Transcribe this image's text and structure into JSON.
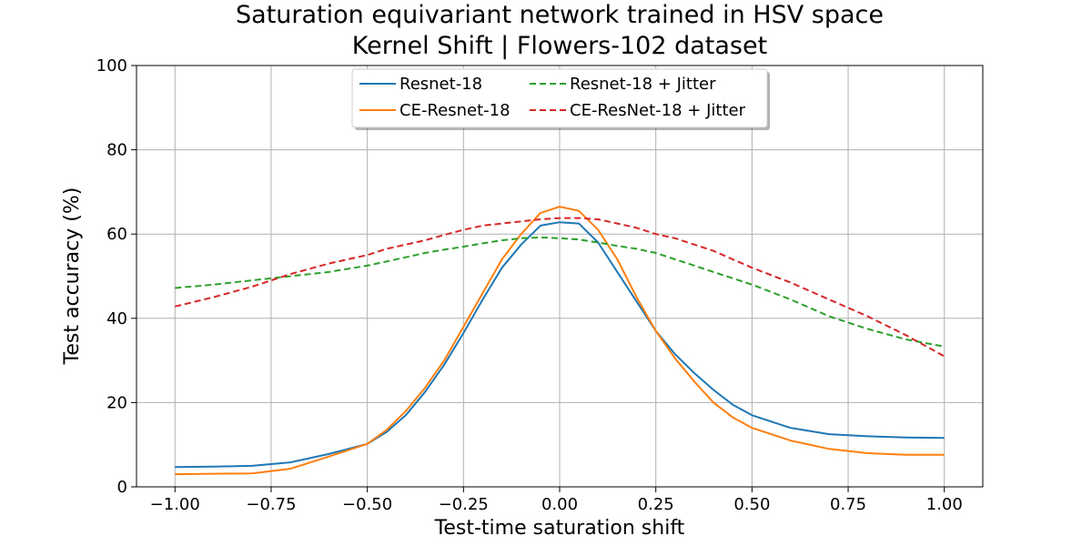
{
  "chart_data": {
    "type": "line",
    "title": "Saturation equivariant network trained in HSV space",
    "subtitle": "Kernel Shift | Flowers-102 dataset",
    "xlabel": "Test-time saturation shift",
    "ylabel": "Test accuracy (%)",
    "xlim": [
      -1.1,
      1.1
    ],
    "ylim": [
      0,
      100
    ],
    "xticks": [
      -1.0,
      -0.75,
      -0.5,
      -0.25,
      0.0,
      0.25,
      0.5,
      0.75,
      1.0
    ],
    "xtick_labels": [
      "−1.00",
      "−0.75",
      "−0.50",
      "−0.25",
      "0.00",
      "0.25",
      "0.50",
      "0.75",
      "1.00"
    ],
    "yticks": [
      0,
      20,
      40,
      60,
      80,
      100
    ],
    "ytick_labels": [
      "0",
      "20",
      "40",
      "60",
      "80",
      "100"
    ],
    "grid": true,
    "legend_position": "top-center",
    "x": [
      -1.0,
      -0.9,
      -0.8,
      -0.7,
      -0.6,
      -0.5,
      -0.45,
      -0.4,
      -0.35,
      -0.3,
      -0.25,
      -0.2,
      -0.15,
      -0.1,
      -0.05,
      0.0,
      0.05,
      0.1,
      0.15,
      0.2,
      0.25,
      0.3,
      0.35,
      0.4,
      0.45,
      0.5,
      0.6,
      0.7,
      0.8,
      0.9,
      1.0
    ],
    "series": [
      {
        "name": "Resnet-18",
        "color": "#1f77b4",
        "dash": "solid",
        "values": [
          4.7,
          4.8,
          5.0,
          5.8,
          7.8,
          10.2,
          13.0,
          17.0,
          22.5,
          29.0,
          36.5,
          44.5,
          52.0,
          57.5,
          62.0,
          62.8,
          62.5,
          58.0,
          51.0,
          44.0,
          37.0,
          31.5,
          27.0,
          23.0,
          19.5,
          17.0,
          14.0,
          12.5,
          12.0,
          11.7,
          11.6
        ]
      },
      {
        "name": "CE-Resnet-18",
        "color": "#ff7f0e",
        "dash": "solid",
        "values": [
          3.0,
          3.1,
          3.2,
          4.3,
          7.2,
          10.2,
          13.5,
          18.0,
          23.5,
          30.0,
          38.0,
          46.0,
          54.0,
          60.0,
          65.0,
          66.5,
          65.5,
          61.0,
          54.0,
          45.0,
          37.0,
          30.5,
          25.0,
          20.0,
          16.5,
          14.0,
          11.0,
          9.0,
          8.0,
          7.6,
          7.6
        ]
      },
      {
        "name": "Resnet-18 + Jitter",
        "color": "#2ca02c",
        "dash": "dashed",
        "values": [
          47.2,
          48.0,
          49.0,
          50.0,
          51.0,
          52.5,
          53.5,
          54.5,
          55.5,
          56.3,
          57.0,
          57.8,
          58.5,
          59.0,
          59.2,
          59.0,
          58.7,
          58.0,
          57.2,
          56.5,
          55.5,
          54.0,
          52.5,
          51.0,
          49.5,
          48.0,
          44.5,
          40.5,
          37.5,
          35.0,
          33.3
        ]
      },
      {
        "name": "CE-ResNet-18 + Jitter",
        "color": "#d62728",
        "dash": "dashed",
        "values": [
          42.8,
          45.0,
          47.5,
          50.5,
          53.0,
          55.0,
          56.5,
          57.5,
          58.5,
          59.8,
          61.0,
          62.0,
          62.5,
          63.0,
          63.5,
          63.8,
          63.8,
          63.5,
          62.5,
          61.5,
          60.0,
          59.0,
          57.5,
          56.0,
          54.0,
          52.0,
          48.5,
          44.5,
          40.5,
          36.0,
          31.0
        ]
      }
    ]
  }
}
